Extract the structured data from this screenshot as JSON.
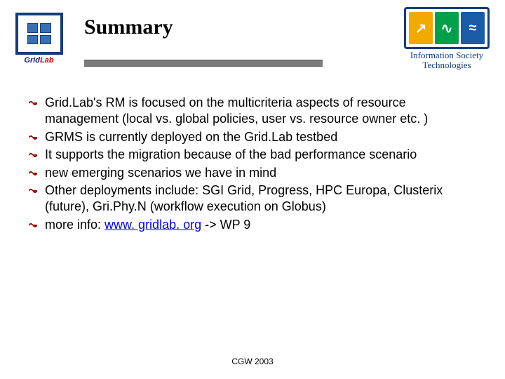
{
  "title": "Summary",
  "logo_left": {
    "name": "Grid",
    "suffix": "Lab"
  },
  "logo_right": {
    "line1": "Information Society",
    "line2": "Technologies",
    "glyphs": [
      "↗",
      "∿",
      "≈"
    ]
  },
  "bullets": [
    {
      "text": "Grid.Lab's RM is focused on the multicriteria aspects of resource management (local vs. global policies, user vs. resource owner etc. )"
    },
    {
      "text": "GRMS is currently deployed on the Grid.Lab testbed"
    },
    {
      "text": "It supports the migration because of the bad performance scenario"
    },
    {
      "text": "new emerging scenarios  we have in mind"
    },
    {
      "text": "Other deployments include: SGI Grid, Progress, HPC Europa, Clusterix (future), Gri.Phy.N (workflow execution on Globus)"
    },
    {
      "prefix": "more info: ",
      "link_text": "www. gridlab. org",
      "suffix": " -> WP 9"
    }
  ],
  "bullet_color": "#a00000",
  "footer": "CGW 2003",
  "colors": {
    "title_rule": "#7a7a7a",
    "logo_border": "#153d7a",
    "ist_orange": "#f2a900",
    "ist_green": "#00a04a",
    "ist_blue": "#195ba6"
  }
}
